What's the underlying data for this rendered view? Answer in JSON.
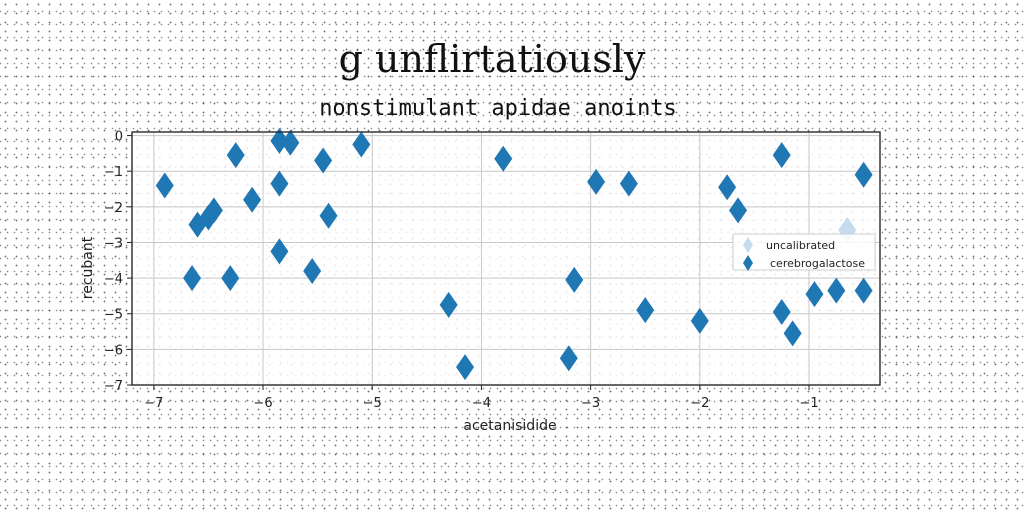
{
  "chart_data": {
    "type": "scatter",
    "title": "g unflirtatiously",
    "subtitle": "nonstimulant apidae anoints",
    "xlabel": "acetanisidide",
    "ylabel": "recubant",
    "xlim": [
      -7.2,
      -0.35
    ],
    "ylim": [
      -7,
      0.1
    ],
    "xticks": [
      -7,
      -6,
      -5,
      -4,
      -3,
      -2,
      -1
    ],
    "yticks": [
      0,
      -1,
      -2,
      -3,
      -4,
      -5,
      -6,
      -7
    ],
    "grid": true,
    "legend_position": "center-right",
    "series": [
      {
        "name": "uncalibrated",
        "color": "#c6dbef",
        "marker": "diamond",
        "points": [
          [
            -0.65,
            -2.65
          ]
        ]
      },
      {
        "name": "cerebrogalactose",
        "color": "#1f77b4",
        "marker": "diamond",
        "points": [
          [
            -6.9,
            -1.4
          ],
          [
            -6.6,
            -2.5
          ],
          [
            -6.5,
            -2.3
          ],
          [
            -6.45,
            -2.1
          ],
          [
            -6.65,
            -4.0
          ],
          [
            -6.3,
            -4.0
          ],
          [
            -6.25,
            -0.55
          ],
          [
            -6.1,
            -1.8
          ],
          [
            -5.85,
            -0.15
          ],
          [
            -5.75,
            -0.2
          ],
          [
            -5.85,
            -1.35
          ],
          [
            -5.85,
            -3.25
          ],
          [
            -5.55,
            -3.8
          ],
          [
            -5.45,
            -0.7
          ],
          [
            -5.4,
            -2.25
          ],
          [
            -5.1,
            -0.25
          ],
          [
            -4.3,
            -4.75
          ],
          [
            -4.15,
            -6.5
          ],
          [
            -3.8,
            -0.65
          ],
          [
            -3.2,
            -6.25
          ],
          [
            -3.15,
            -4.05
          ],
          [
            -2.95,
            -1.3
          ],
          [
            -2.65,
            -1.35
          ],
          [
            -2.5,
            -4.9
          ],
          [
            -2.0,
            -5.2
          ],
          [
            -1.75,
            -1.45
          ],
          [
            -1.65,
            -2.1
          ],
          [
            -1.25,
            -0.55
          ],
          [
            -1.25,
            -4.95
          ],
          [
            -1.15,
            -5.55
          ],
          [
            -0.95,
            -4.45
          ],
          [
            -0.75,
            -4.35
          ],
          [
            -0.5,
            -1.1
          ],
          [
            -0.5,
            -4.35
          ]
        ]
      }
    ]
  }
}
